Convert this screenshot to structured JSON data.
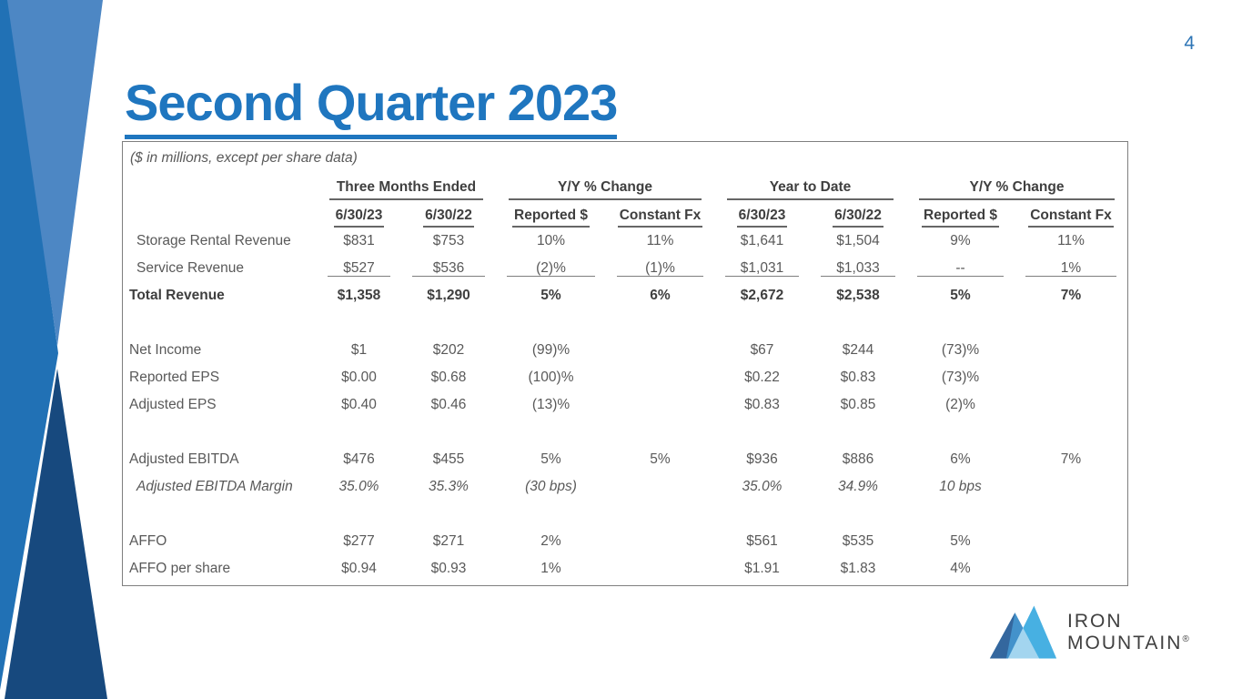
{
  "slide": {
    "page_number": "4",
    "title": "Second Quarter 2023"
  },
  "table": {
    "caption": "($ in millions, except per share data)",
    "column_groups": [
      {
        "label": "Three Months Ended"
      },
      {
        "label": "Y/Y % Change"
      },
      {
        "label": "Year to Date"
      },
      {
        "label": "Y/Y % Change"
      }
    ],
    "column_headers": [
      "6/30/23",
      "6/30/22",
      "Reported $",
      "Constant Fx",
      "6/30/23",
      "6/30/22",
      "Reported $",
      "Constant Fx"
    ],
    "rows": [
      {
        "label": "Storage Rental Revenue",
        "indent": true,
        "values": [
          "$831",
          "$753",
          "10%",
          "11%",
          "$1,641",
          "$1,504",
          "9%",
          "11%"
        ]
      },
      {
        "label": "Service Revenue",
        "indent": true,
        "rule_below": true,
        "values": [
          "$527",
          "$536",
          "(2)%",
          "(1)%",
          "$1,031",
          "$1,033",
          "--",
          "1%"
        ]
      },
      {
        "label": "Total Revenue",
        "bold": true,
        "values": [
          "$1,358",
          "$1,290",
          "5%",
          "6%",
          "$2,672",
          "$2,538",
          "5%",
          "7%"
        ]
      },
      {
        "spacer": true
      },
      {
        "label": "Net Income",
        "values": [
          "$1",
          "$202",
          "(99)%",
          "",
          "$67",
          "$244",
          "(73)%",
          ""
        ]
      },
      {
        "label": "Reported EPS",
        "values": [
          "$0.00",
          "$0.68",
          "(100)%",
          "",
          "$0.22",
          "$0.83",
          "(73)%",
          ""
        ]
      },
      {
        "label": "Adjusted EPS",
        "values": [
          "$0.40",
          "$0.46",
          "(13)%",
          "",
          "$0.83",
          "$0.85",
          "(2)%",
          ""
        ]
      },
      {
        "spacer": true
      },
      {
        "label": "Adjusted EBITDA",
        "values": [
          "$476",
          "$455",
          "5%",
          "5%",
          "$936",
          "$886",
          "6%",
          "7%"
        ]
      },
      {
        "label": "Adjusted EBITDA Margin",
        "indent": true,
        "italic": true,
        "values": [
          "35.0%",
          "35.3%",
          "(30 bps)",
          "",
          "35.0%",
          "34.9%",
          "10 bps",
          ""
        ]
      },
      {
        "spacer": true
      },
      {
        "label": "AFFO",
        "values": [
          "$277",
          "$271",
          "2%",
          "",
          "$561",
          "$535",
          "5%",
          ""
        ]
      },
      {
        "label": "AFFO per share",
        "values": [
          "$0.94",
          "$0.93",
          "1%",
          "",
          "$1.91",
          "$1.83",
          "4%",
          ""
        ]
      }
    ]
  },
  "logo": {
    "company": "Iron Mountain",
    "line1": "IRON",
    "line2": "MOUNTAIN",
    "registered_mark": "®"
  },
  "colors": {
    "title_blue": "#1f76bf",
    "page_number_blue": "#2e75b6",
    "deco_light_blue": "#4d87c4",
    "deco_medium_blue": "#2171b5",
    "deco_navy": "#17497e",
    "table_border_gray": "#7f7f7f",
    "table_text_gray": "#595959",
    "table_header_dark": "#3f3f3f",
    "logo_text_gray": "#404040",
    "logo_peak_bright": "#47b0e2",
    "logo_peak_medium": "#4392cb",
    "logo_peak_pale": "#a3d5ef",
    "logo_peak_dark": "#34679e"
  }
}
